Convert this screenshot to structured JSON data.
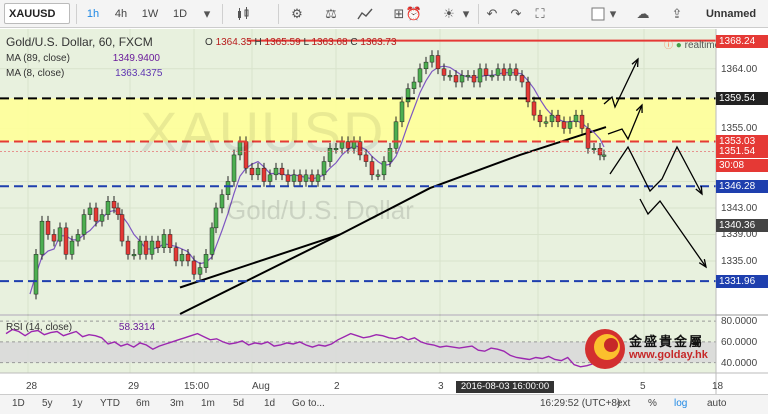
{
  "toolbar": {
    "symbol": "XAUUSD",
    "intervals": [
      "1h",
      "4h",
      "1W",
      "1D"
    ],
    "active_interval": "1h",
    "layout_name": "Unnamed"
  },
  "legend": {
    "title": "Gold/U.S. Dollar, 60, FXCM",
    "ohlc": {
      "o_label": "O",
      "o": "1364.35",
      "h_label": "H",
      "h": "1365.59",
      "l_label": "L",
      "l": "1363.68",
      "c_label": "C",
      "c": "1363.73"
    },
    "ma89_label": "MA (89, close)",
    "ma89_value": "1349.9400",
    "ma8_label": "MA (8, close)",
    "ma8_value": "1363.4375",
    "rsi_label": "RSI (14, close)",
    "rsi_value": "58.3314",
    "realtime": "realtime"
  },
  "watermark": {
    "symbol": "XAUUSD",
    "name": "Gold/U.S. Dollar"
  },
  "price_axis": {
    "ticks": [
      "1364.00",
      "1355.00",
      "1343.00",
      "1339.00",
      "1335.00"
    ],
    "labels": [
      {
        "text": "1368.24",
        "color": "#e53935"
      },
      {
        "text": "1359.54",
        "color": "#222222"
      },
      {
        "text": "1353.03",
        "color": "#e53935"
      },
      {
        "text": "1351.54",
        "color": "#e53935"
      },
      {
        "text": "30:08",
        "color": "#e53935"
      },
      {
        "text": "1346.28",
        "color": "#1e3fae"
      },
      {
        "text": "1340.36",
        "color": "#444444"
      },
      {
        "text": "1331.96",
        "color": "#1e3fae"
      }
    ]
  },
  "rsi_axis": {
    "ticks": [
      "80.0000",
      "60.0000",
      "40.0000"
    ]
  },
  "time_axis": {
    "ticks": [
      "28",
      "29",
      "15:00",
      "Aug",
      "2",
      "3",
      "5",
      "18"
    ],
    "crosshair_label": "2016-08-03 16:00:00"
  },
  "chart_data": {
    "type": "candlestick",
    "horizontal_levels": [
      {
        "price": 1368.24,
        "color": "#e53935",
        "style": "solid"
      },
      {
        "price": 1359.54,
        "color": "#000000",
        "style": "dashed"
      },
      {
        "price": 1353.03,
        "color": "#e53935",
        "style": "dashed"
      },
      {
        "price": 1346.28,
        "color": "#1e3fae",
        "style": "dashed"
      },
      {
        "price": 1331.96,
        "color": "#1e3fae",
        "style": "dashed"
      }
    ],
    "zone": {
      "from": 1353.03,
      "to": 1359.54,
      "color": "#ffff99"
    },
    "price_range": [
      1327,
      1370
    ],
    "rsi_range": [
      30,
      85
    ]
  },
  "logo": {
    "name": "金盛貴金屬",
    "url": "www.golday.hk"
  },
  "bottom": {
    "ranges": [
      "1D",
      "5y",
      "1y",
      "YTD",
      "6m",
      "3m",
      "1m",
      "5d",
      "1d",
      "Go to..."
    ],
    "time": "16:29:52 (UTC+8)",
    "options": [
      "ext",
      "%",
      "log",
      "auto"
    ]
  }
}
